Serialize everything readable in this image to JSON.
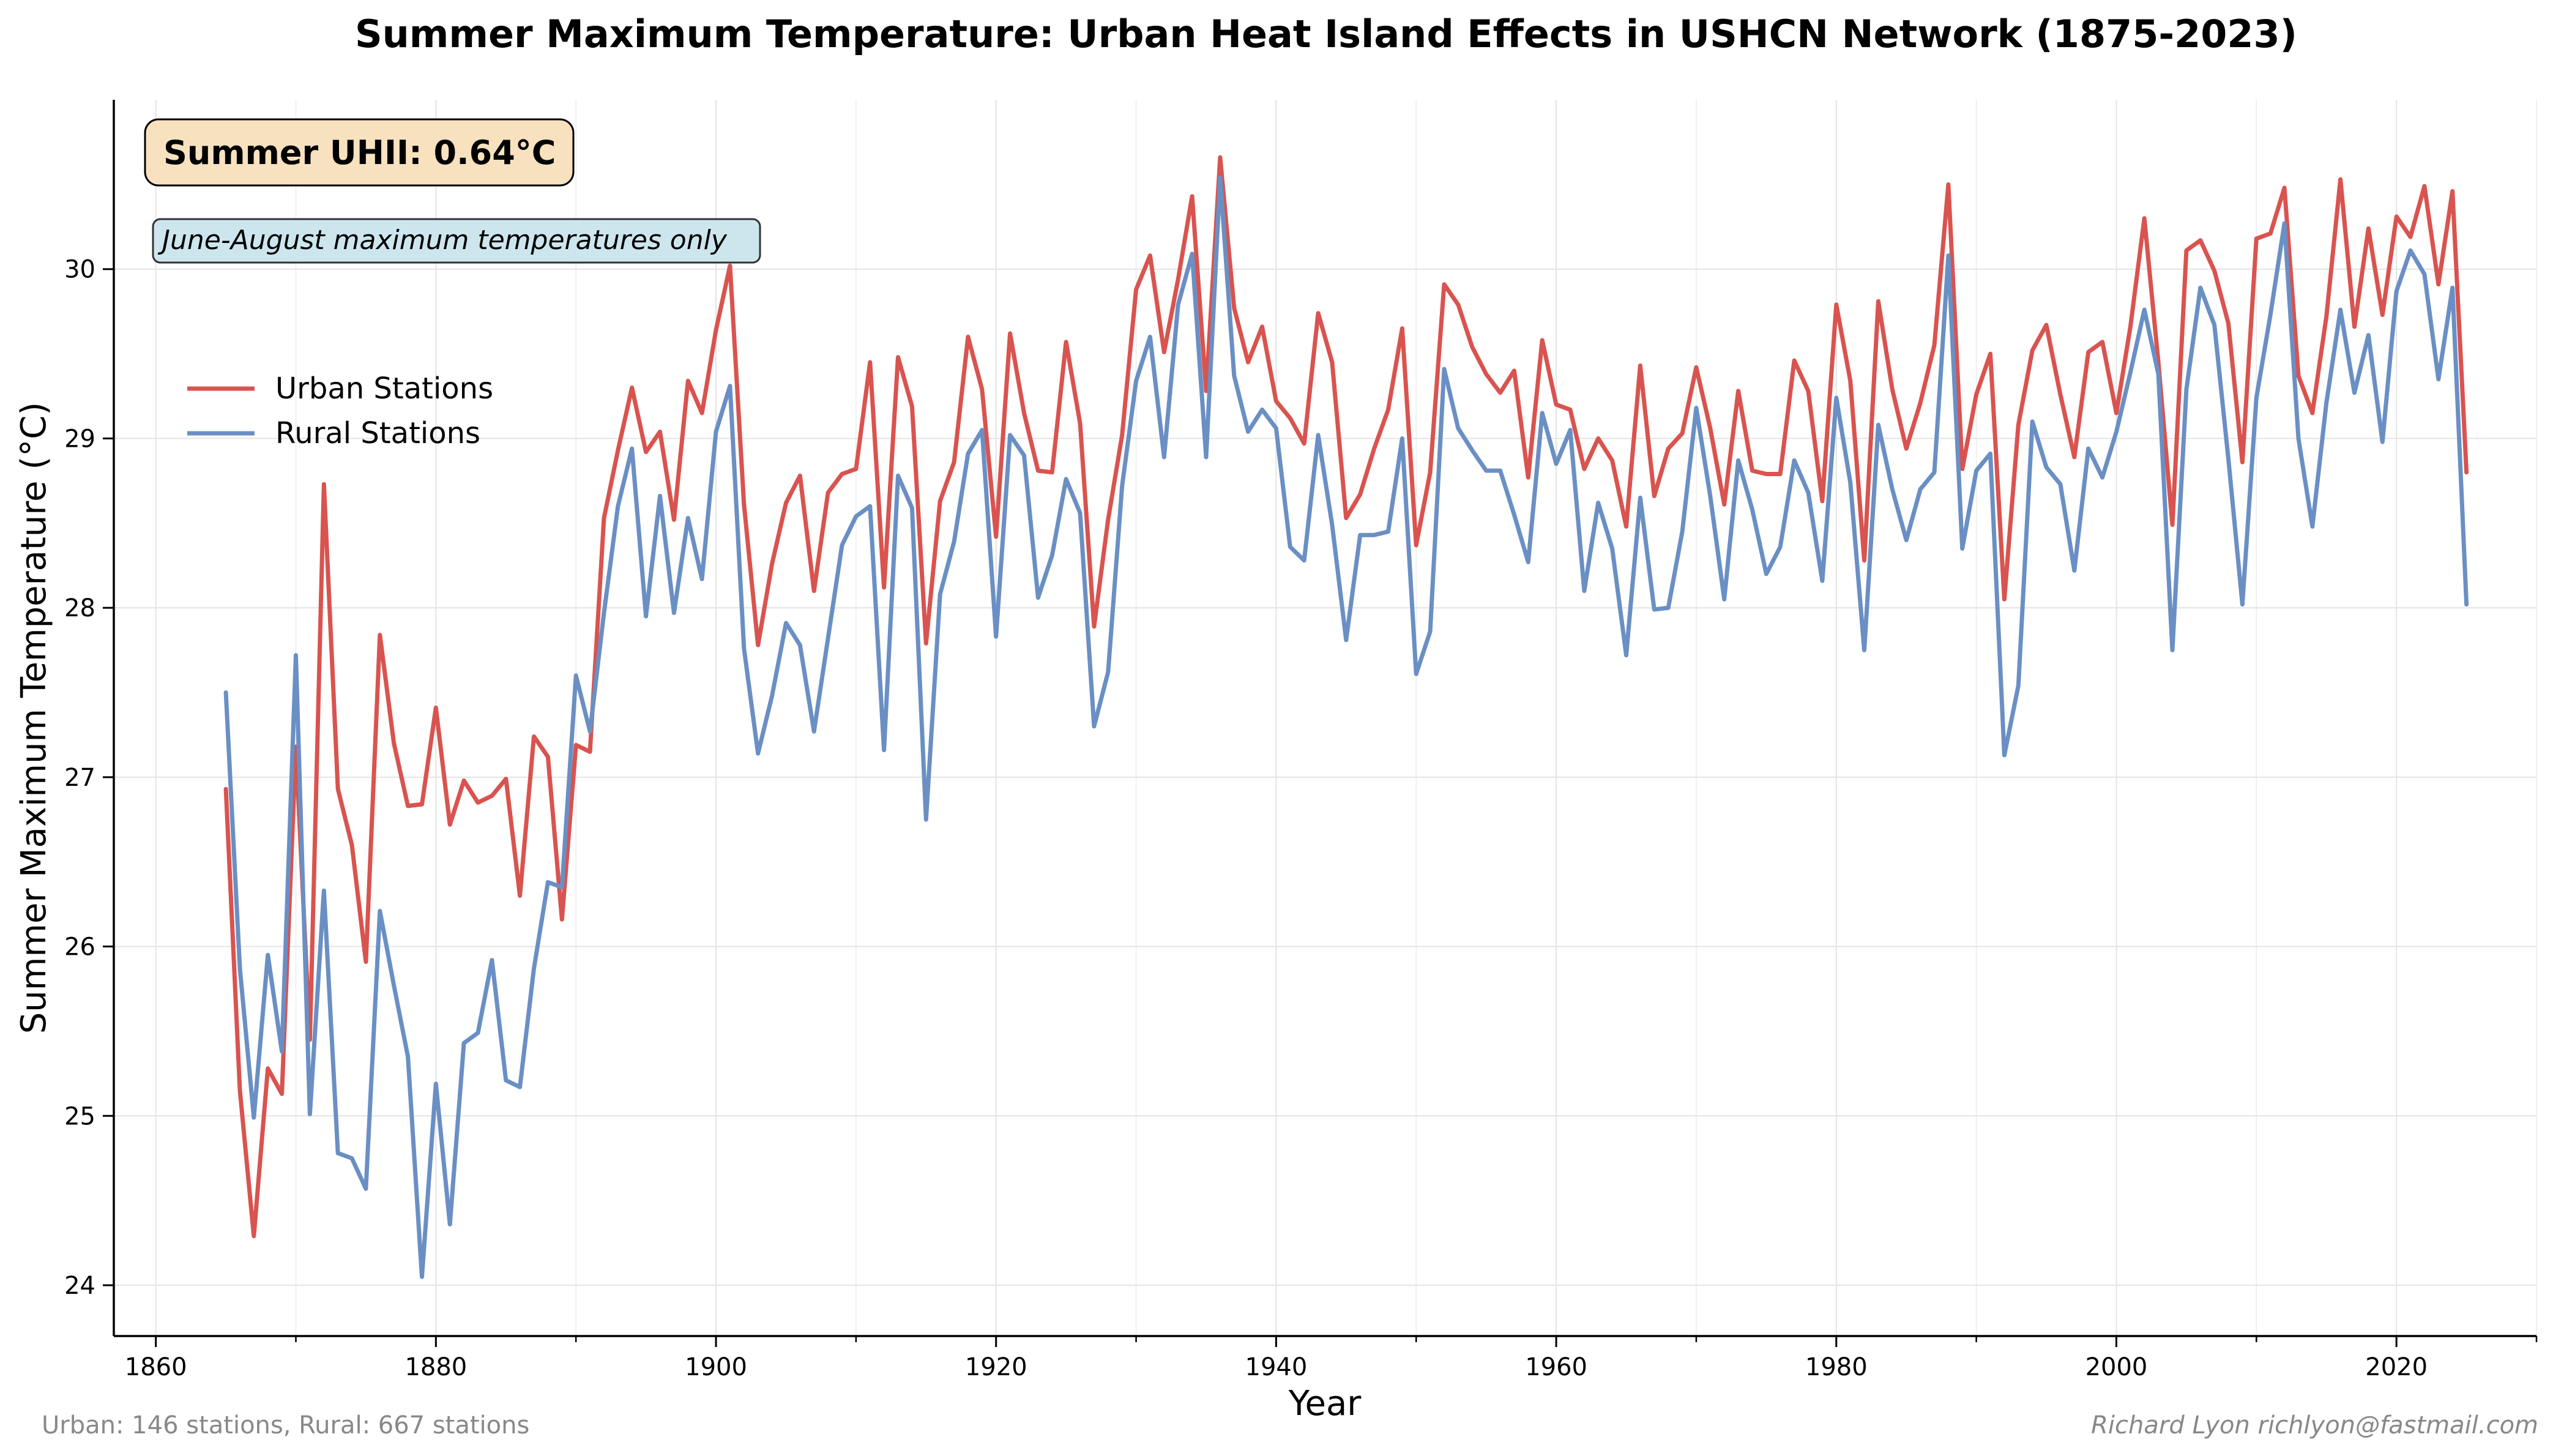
{
  "chart_data": {
    "type": "line",
    "title": "Summer Maximum Temperature: Urban Heat Island Effects in USHCN Network (1875-2023)",
    "xlabel": "Year",
    "ylabel": "Summer Maximum Temperature (°C)",
    "xlim": [
      1857,
      2030
    ],
    "ylim": [
      23.7,
      31.0
    ],
    "x_ticks": [
      1860,
      1880,
      1900,
      1920,
      1940,
      1960,
      1980,
      2000,
      2020
    ],
    "y_ticks": [
      24,
      25,
      26,
      27,
      28,
      29,
      30
    ],
    "grid": true,
    "legend_position": "upper-left",
    "x": [
      1865,
      1866,
      1867,
      1868,
      1869,
      1870,
      1871,
      1872,
      1873,
      1874,
      1875,
      1876,
      1877,
      1878,
      1879,
      1880,
      1881,
      1882,
      1883,
      1884,
      1885,
      1886,
      1887,
      1888,
      1889,
      1890,
      1891,
      1892,
      1893,
      1894,
      1895,
      1896,
      1897,
      1898,
      1899,
      1900,
      1901,
      1902,
      1903,
      1904,
      1905,
      1906,
      1907,
      1908,
      1909,
      1910,
      1911,
      1912,
      1913,
      1914,
      1915,
      1916,
      1917,
      1918,
      1919,
      1920,
      1921,
      1922,
      1923,
      1924,
      1925,
      1926,
      1927,
      1928,
      1929,
      1930,
      1931,
      1932,
      1933,
      1934,
      1935,
      1936,
      1937,
      1938,
      1939,
      1940,
      1941,
      1942,
      1943,
      1944,
      1945,
      1946,
      1947,
      1948,
      1949,
      1950,
      1951,
      1952,
      1953,
      1954,
      1955,
      1956,
      1957,
      1958,
      1959,
      1960,
      1961,
      1962,
      1963,
      1964,
      1965,
      1966,
      1967,
      1968,
      1969,
      1970,
      1971,
      1972,
      1973,
      1974,
      1975,
      1976,
      1977,
      1978,
      1979,
      1980,
      1981,
      1982,
      1983,
      1984,
      1985,
      1986,
      1987,
      1988,
      1989,
      1990,
      1991,
      1992,
      1993,
      1994,
      1995,
      1996,
      1997,
      1998,
      1999,
      2000,
      2001,
      2002,
      2003,
      2004,
      2005,
      2006,
      2007,
      2008,
      2009,
      2010,
      2011,
      2012,
      2013,
      2014,
      2015,
      2016,
      2017,
      2018,
      2019,
      2020,
      2021,
      2022,
      2023,
      2024,
      2025
    ],
    "series": [
      {
        "name": "Urban Stations",
        "color": "#d9534f",
        "values": [
          26.93,
          25.15,
          24.29,
          25.28,
          25.13,
          27.18,
          25.45,
          28.73,
          26.93,
          26.6,
          25.91,
          27.84,
          27.2,
          26.83,
          26.84,
          27.41,
          26.72,
          26.98,
          26.85,
          26.89,
          26.99,
          26.3,
          27.24,
          27.12,
          26.16,
          27.19,
          27.15,
          28.53,
          28.93,
          29.3,
          28.92,
          29.04,
          28.52,
          29.34,
          29.15,
          29.64,
          30.02,
          28.61,
          27.78,
          28.26,
          28.62,
          28.78,
          28.1,
          28.68,
          28.79,
          28.82,
          29.45,
          28.12,
          29.48,
          29.19,
          27.79,
          28.63,
          28.86,
          29.6,
          29.29,
          28.42,
          29.62,
          29.15,
          28.81,
          28.8,
          29.57,
          29.09,
          27.89,
          28.52,
          29.02,
          29.88,
          30.08,
          29.51,
          29.94,
          30.43,
          29.28,
          30.66,
          29.77,
          29.45,
          29.66,
          29.22,
          29.12,
          28.97,
          29.74,
          29.45,
          28.53,
          28.67,
          28.94,
          29.17,
          29.65,
          28.37,
          28.8,
          29.91,
          29.79,
          29.54,
          29.38,
          29.27,
          29.4,
          28.77,
          29.58,
          29.2,
          29.17,
          28.82,
          29.0,
          28.87,
          28.48,
          29.43,
          28.66,
          28.94,
          29.03,
          29.42,
          29.06,
          28.61,
          29.28,
          28.81,
          28.79,
          28.79,
          29.46,
          29.28,
          28.63,
          29.79,
          29.34,
          28.28,
          29.81,
          29.29,
          28.94,
          29.21,
          29.55,
          30.5,
          28.82,
          29.26,
          29.5,
          28.05,
          29.08,
          29.52,
          29.67,
          29.26,
          28.89,
          29.51,
          29.57,
          29.15,
          29.66,
          30.3,
          29.45,
          28.49,
          30.11,
          30.17,
          29.99,
          29.68,
          28.86,
          30.18,
          30.21,
          30.48,
          29.37,
          29.15,
          29.72,
          30.53,
          29.66,
          30.24,
          29.73,
          30.31,
          30.19,
          30.49,
          29.91,
          30.46,
          28.8
        ]
      },
      {
        "name": "Rural Stations",
        "color": "#6a8fc4",
        "values": [
          27.5,
          25.87,
          24.99,
          25.95,
          25.38,
          27.72,
          25.01,
          26.33,
          24.78,
          24.75,
          24.57,
          26.21,
          25.77,
          25.35,
          24.05,
          25.19,
          24.36,
          25.43,
          25.49,
          25.92,
          25.21,
          25.17,
          25.87,
          26.38,
          26.35,
          27.6,
          27.27,
          27.97,
          28.6,
          28.94,
          27.95,
          28.66,
          27.97,
          28.53,
          28.17,
          29.04,
          29.31,
          27.76,
          27.14,
          27.48,
          27.91,
          27.78,
          27.27,
          27.82,
          28.37,
          28.54,
          28.6,
          27.16,
          28.78,
          28.59,
          26.75,
          28.08,
          28.39,
          28.91,
          29.05,
          27.83,
          29.02,
          28.9,
          28.06,
          28.31,
          28.76,
          28.56,
          27.3,
          27.62,
          28.72,
          29.34,
          29.6,
          28.89,
          29.79,
          30.09,
          28.89,
          30.54,
          29.37,
          29.04,
          29.17,
          29.06,
          28.36,
          28.28,
          29.02,
          28.49,
          27.81,
          28.43,
          28.43,
          28.45,
          29.0,
          27.61,
          27.86,
          29.41,
          29.06,
          28.93,
          28.81,
          28.81,
          28.55,
          28.27,
          29.15,
          28.85,
          29.05,
          28.1,
          28.62,
          28.35,
          27.72,
          28.65,
          27.99,
          28.0,
          28.45,
          29.18,
          28.66,
          28.05,
          28.87,
          28.58,
          28.2,
          28.36,
          28.87,
          28.68,
          28.16,
          29.24,
          28.74,
          27.75,
          29.08,
          28.7,
          28.4,
          28.7,
          28.8,
          30.08,
          28.35,
          28.81,
          28.91,
          27.13,
          27.54,
          29.1,
          28.83,
          28.73,
          28.22,
          28.94,
          28.77,
          29.04,
          29.39,
          29.76,
          29.38,
          27.75,
          29.29,
          29.89,
          29.67,
          28.88,
          28.02,
          29.24,
          29.73,
          30.27,
          29.0,
          28.48,
          29.21,
          29.76,
          29.27,
          29.61,
          28.98,
          29.87,
          30.11,
          29.97,
          29.35,
          29.89,
          28.02
        ]
      }
    ],
    "annotations": {
      "uhii_box": "Summer UHII: 0.64°C",
      "note_box": "June-August maximum temperatures only"
    },
    "footer_left": "Urban: 146 stations, Rural: 667 stations",
    "footer_right": "Richard Lyon richlyon@fastmail.com"
  }
}
